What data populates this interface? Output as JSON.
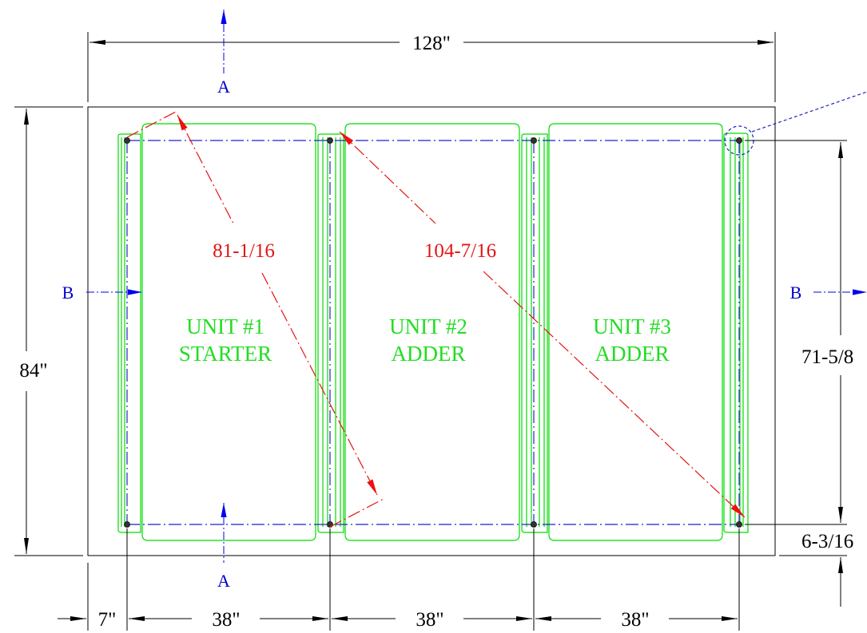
{
  "dimensions": {
    "overall_width": "128\"",
    "overall_height": "84\"",
    "left_offset": "7\"",
    "spacing_1": "38\"",
    "spacing_2": "38\"",
    "spacing_3": "38\"",
    "vertical_span": "71-5/8",
    "bottom_offset": "6-3/16"
  },
  "diagonals": {
    "unit1_diagonal": "81-1/16",
    "overall_diagonal": "104-7/16"
  },
  "section_marks": {
    "a_top": "A",
    "a_bottom": "A",
    "b_left": "B",
    "b_right": "B"
  },
  "units": [
    {
      "number": "UNIT #1",
      "type": "STARTER"
    },
    {
      "number": "UNIT #2",
      "type": "ADDER"
    },
    {
      "number": "UNIT #3",
      "type": "ADDER"
    }
  ],
  "colors": {
    "unit_outline": "#00dd00",
    "centerline": "#2222cc",
    "diagonal": "#e41414",
    "dimension": "#000000"
  }
}
